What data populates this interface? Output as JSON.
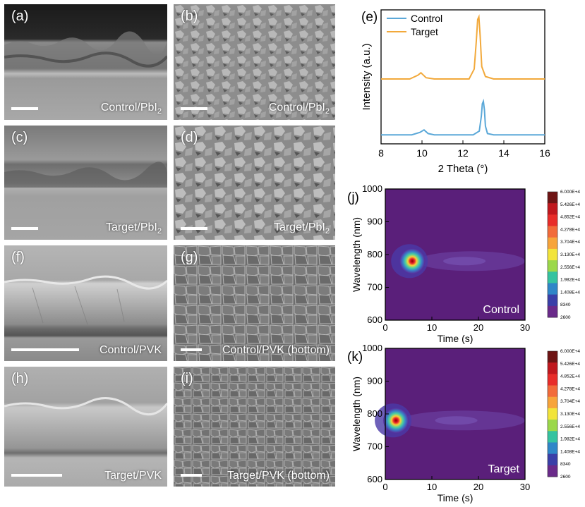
{
  "sem_panels": [
    {
      "label": "(a)",
      "caption": "Control/PbI",
      "sub": "2"
    },
    {
      "label": "(b)",
      "caption": "Control/PbI",
      "sub": "2"
    },
    {
      "label": "(c)",
      "caption": "Target/PbI",
      "sub": "2"
    },
    {
      "label": "(d)",
      "caption": "Target/PbI",
      "sub": "2"
    },
    {
      "label": "(f)",
      "caption": "Control/PVK",
      "sub": ""
    },
    {
      "label": "(g)",
      "caption": "Control/PVK (bottom)",
      "sub": ""
    },
    {
      "label": "(h)",
      "caption": "Target/PVK",
      "sub": ""
    },
    {
      "label": "(i)",
      "caption": "Target/PVK (bottom)",
      "sub": ""
    }
  ],
  "chart_data": [
    {
      "type": "line",
      "panel_label": "(e)",
      "xlabel": "2 Theta (°)",
      "ylabel": "Intensity (a.u.)",
      "xlim": [
        8,
        16
      ],
      "xticks": [
        "8",
        "10",
        "12",
        "14",
        "16"
      ],
      "legend_placement": "top-left",
      "series": [
        {
          "name": "Control",
          "color": "#5ba8d8",
          "x": [
            8,
            9.5,
            9.9,
            10.1,
            10.3,
            10.6,
            12.5,
            12.8,
            12.9,
            12.95,
            13.0,
            13.05,
            13.1,
            13.2,
            13.5,
            16
          ],
          "y": [
            0.05,
            0.05,
            0.07,
            0.09,
            0.06,
            0.05,
            0.05,
            0.08,
            0.2,
            0.3,
            0.32,
            0.25,
            0.12,
            0.06,
            0.05,
            0.05
          ]
        },
        {
          "name": "Target",
          "color": "#f2a93b",
          "x": [
            8,
            9.4,
            9.8,
            9.95,
            10.2,
            10.6,
            12.3,
            12.55,
            12.65,
            12.72,
            12.78,
            12.84,
            12.92,
            13.1,
            13.5,
            16
          ],
          "y": [
            0.5,
            0.5,
            0.53,
            0.55,
            0.51,
            0.5,
            0.5,
            0.58,
            0.8,
            0.98,
            1.0,
            0.85,
            0.6,
            0.52,
            0.5,
            0.5
          ]
        }
      ]
    },
    {
      "type": "heatmap",
      "panel_label": "(j)",
      "annotation": "Control",
      "xlabel": "Time (s)",
      "ylabel": "Wavelength (nm)",
      "xlim": [
        0,
        30
      ],
      "ylim": [
        600,
        1000
      ],
      "xticks": [
        "0",
        "10",
        "20",
        "30"
      ],
      "yticks": [
        "600",
        "700",
        "800",
        "900",
        "1000"
      ],
      "colorbar_ticks": [
        "6.000E+4",
        "5.426E+4",
        "4.852E+4",
        "4.278E+4",
        "3.704E+4",
        "3.130E+4",
        "2.556E+4",
        "1.982E+4",
        "1.408E+4",
        "8340",
        "2600"
      ],
      "peak": {
        "time_s": 7,
        "wavelength_nm": 780
      }
    },
    {
      "type": "heatmap",
      "panel_label": "(k)",
      "annotation": "Target",
      "xlabel": "Time (s)",
      "ylabel": "Wavelength (nm)",
      "xlim": [
        0,
        30
      ],
      "ylim": [
        600,
        1000
      ],
      "xticks": [
        "0",
        "10",
        "20",
        "30"
      ],
      "yticks": [
        "600",
        "700",
        "800",
        "900",
        "1000"
      ],
      "colorbar_ticks": [
        "6.000E+4",
        "5.426E+4",
        "4.852E+4",
        "4.278E+4",
        "3.704E+4",
        "3.130E+4",
        "2.556E+4",
        "1.982E+4",
        "1.408E+4",
        "8340",
        "2600"
      ],
      "peak": {
        "time_s": 3.5,
        "wavelength_nm": 780
      }
    }
  ]
}
